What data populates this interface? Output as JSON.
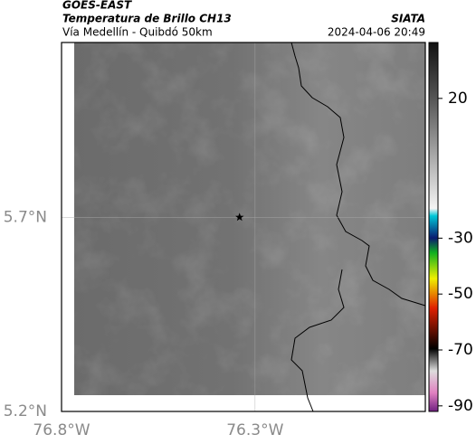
{
  "header": {
    "title": "GOES-EAST",
    "subtitle": "Temperatura de Brillo CH13",
    "route": "Vía Medellín - Quibdó 50km",
    "source": "SIATA",
    "timestamp": "2024-04-06 20:49"
  },
  "map": {
    "xlim": [
      -76.8,
      -75.86
    ],
    "ylim": [
      5.2,
      6.15
    ],
    "xticks": [
      {
        "value": -76.8,
        "label": "76.8°W"
      },
      {
        "value": -76.3,
        "label": "76.3°W"
      }
    ],
    "yticks": [
      {
        "value": 5.2,
        "label": "5.2°N"
      },
      {
        "value": 5.7,
        "label": "5.7°N"
      }
    ],
    "marker": {
      "lon": -76.34,
      "lat": 5.7
    }
  },
  "colorbar": {
    "lim": [
      -92,
      40
    ],
    "ticks": [
      20,
      -30,
      -50,
      -70,
      -90
    ]
  }
}
